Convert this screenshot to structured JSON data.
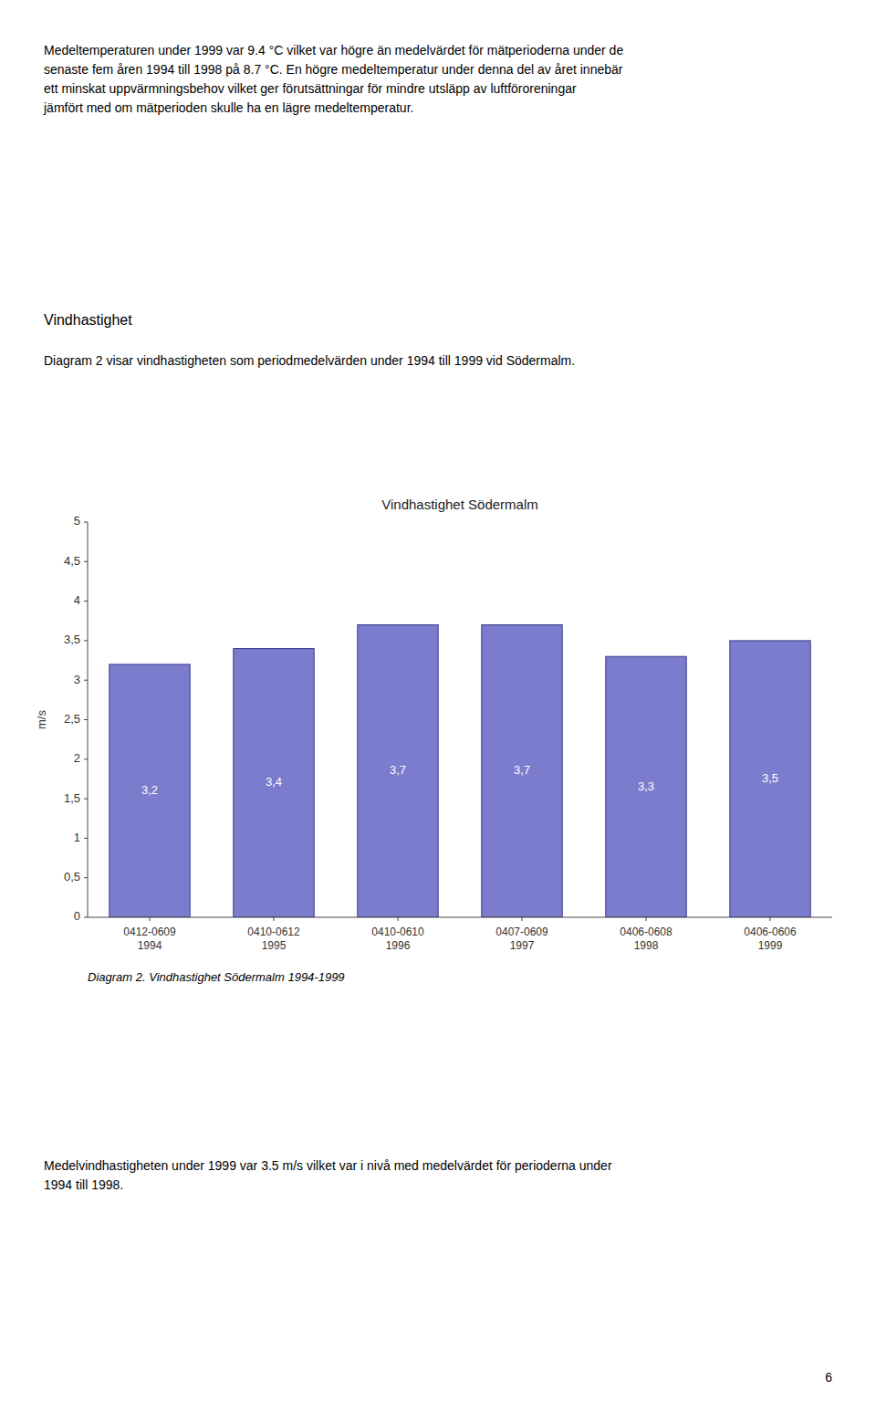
{
  "page_text_top": [
    "Medeltemperaturen under 1999 var 9.4 °C vilket var högre än medelvärdet för mätperioderna under de",
    "senaste fem åren 1994 till 1998 på 8.7 °C. En högre medeltemperatur under denna del av året innebär",
    "ett minskat uppvärmningsbehov vilket ger förutsättningar för mindre utsläpp av luftföroreningar",
    "jämfört med om mätperioden skulle ha en lägre medeltemperatur."
  ],
  "section_heading": "Vindhastighet",
  "section_text": "Diagram 2 visar vindhastigheten som periodmedelvärden under 1994 till 1999 vid Södermalm.",
  "caption": "Diagram 2. Vindhastighet Södermalm 1994-1999",
  "footer_text": "Medelvindhastigheten under 1999 var 3.5 m/s vilket var i nivå med medelvärdet för perioderna under\n1994 till 1998.",
  "page_number": "6",
  "chart_data": {
    "type": "bar",
    "title": "Vindhastighet Södermalm",
    "ylabel": "m/s",
    "categories": [
      "0412-0609\n1994",
      "0410-0612\n1995",
      "0410-0610\n1996",
      "0407-0609\n1997",
      "0406-0608\n1998",
      "0406-0606\n1999"
    ],
    "values": [
      3.2,
      3.4,
      3.7,
      3.7,
      3.3,
      3.5
    ],
    "value_labels": [
      "3,2",
      "3,4",
      "3,7",
      "3,7",
      "3,3",
      "3,5"
    ],
    "data_labels": true,
    "color": "#7b7ccd",
    "ylim": [
      0,
      5
    ],
    "yticks": [
      0,
      {
        "value": 0.5,
        "label": "0,5"
      },
      1,
      {
        "value": 1.5,
        "label": "1,5"
      },
      2,
      {
        "value": 2.5,
        "label": "2,5"
      },
      3,
      {
        "value": 3.5,
        "label": "3,5"
      },
      4,
      {
        "value": 4.5,
        "label": "4,5"
      },
      5
    ],
    "grid": false
  }
}
